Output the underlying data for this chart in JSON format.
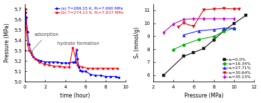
{
  "left": {
    "blue_x": [
      0,
      0.05,
      0.12,
      0.25,
      0.4,
      0.6,
      0.8,
      1.0,
      1.3,
      1.6,
      2.0,
      2.4,
      2.8,
      3.2,
      3.6,
      4.0,
      4.4,
      4.8,
      5.0,
      5.1,
      5.2,
      5.35,
      5.5,
      5.7,
      6.0,
      6.5,
      7.0,
      7.5,
      8.0,
      8.5,
      9.0,
      9.3
    ],
    "blue_y": [
      5.61,
      5.67,
      5.62,
      5.48,
      5.36,
      5.28,
      5.24,
      5.22,
      5.21,
      5.2,
      5.19,
      5.19,
      5.19,
      5.19,
      5.18,
      5.18,
      5.18,
      5.19,
      5.19,
      5.31,
      5.22,
      5.14,
      5.11,
      5.1,
      5.1,
      5.07,
      5.06,
      5.06,
      5.05,
      5.05,
      5.05,
      5.04
    ],
    "red_x": [
      0,
      0.05,
      0.12,
      0.25,
      0.4,
      0.7,
      1.0,
      1.4,
      1.9,
      2.4,
      2.9,
      3.4,
      3.9,
      4.4,
      4.75,
      5.2,
      5.7,
      6.2,
      6.7,
      7.2,
      7.7,
      8.2,
      8.7,
      9.2
    ],
    "red_y": [
      5.3,
      5.7,
      5.52,
      5.36,
      5.3,
      5.26,
      5.22,
      5.19,
      5.17,
      5.16,
      5.15,
      5.15,
      5.14,
      5.14,
      5.33,
      5.16,
      5.14,
      5.13,
      5.13,
      5.13,
      5.13,
      5.13,
      5.13,
      5.13
    ],
    "xlim": [
      0,
      10
    ],
    "ylim": [
      5.0,
      5.75
    ],
    "yticks": [
      5.0,
      5.1,
      5.2,
      5.3,
      5.4,
      5.5,
      5.6,
      5.7
    ],
    "xticks": [
      0,
      2,
      4,
      6,
      8,
      10
    ],
    "xlabel": "time (hour)",
    "ylabel": "Pressure (MPa)",
    "label_a": "(a) T=269.15 K, P₀=7.690 MPa",
    "label_b": "(b) T=274.15 K, P₀=7.837 MPa",
    "annot_adsorption": "adsorption",
    "annot_hydrate": "hydrate formation"
  },
  "right": {
    "series": [
      {
        "label": "xₙ=0.0%",
        "color": "#111111",
        "marker": "s",
        "markersize": 3.0,
        "x": [
          3.0,
          5.0,
          6.0,
          7.0,
          8.0,
          9.0,
          10.0,
          11.2
        ],
        "y": [
          5.98,
          7.45,
          7.75,
          8.05,
          8.72,
          9.42,
          9.98,
          10.62
        ]
      },
      {
        "label": "xₙ=16.34%",
        "color": "#00aa00",
        "marker": "o",
        "markersize": 3.0,
        "x": [
          4.0,
          5.0,
          6.5,
          8.0,
          9.0,
          10.0
        ],
        "y": [
          7.98,
          8.33,
          8.75,
          8.98,
          9.38,
          9.62
        ]
      },
      {
        "label": "xₙ=27.71%",
        "color": "#1a1aff",
        "marker": "^",
        "markersize": 3.0,
        "x": [
          5.0,
          6.5,
          8.0,
          9.0,
          10.0
        ],
        "y": [
          9.1,
          9.42,
          9.52,
          9.62,
          9.62
        ]
      },
      {
        "label": "xₙ=30.64%",
        "color": "#dd0000",
        "marker": "v",
        "markersize": 3.0,
        "x": [
          4.5,
          5.0,
          6.0,
          7.0,
          8.0,
          9.0,
          10.0,
          10.5
        ],
        "y": [
          9.72,
          10.02,
          9.76,
          11.05,
          11.1,
          11.15,
          11.1,
          11.12
        ]
      },
      {
        "label": "xₙ=35.13%",
        "color": "#bb00bb",
        "marker": "d",
        "markersize": 2.8,
        "x": [
          3.0,
          4.0,
          5.0,
          6.0,
          7.0,
          8.0,
          9.0,
          10.0
        ],
        "y": [
          9.28,
          9.95,
          10.3,
          10.35,
          10.35,
          10.35,
          10.35,
          10.35
        ]
      }
    ],
    "xlim": [
      2,
      12
    ],
    "ylim": [
      5.5,
      11.5
    ],
    "yticks": [
      6,
      7,
      8,
      9,
      10,
      11
    ],
    "xticks": [
      2,
      4,
      6,
      8,
      10,
      12
    ],
    "xlabel": "Pressure (MPa)",
    "ylabel": "Sₙ (mmol/g)"
  },
  "bg_color": "#ffffff"
}
